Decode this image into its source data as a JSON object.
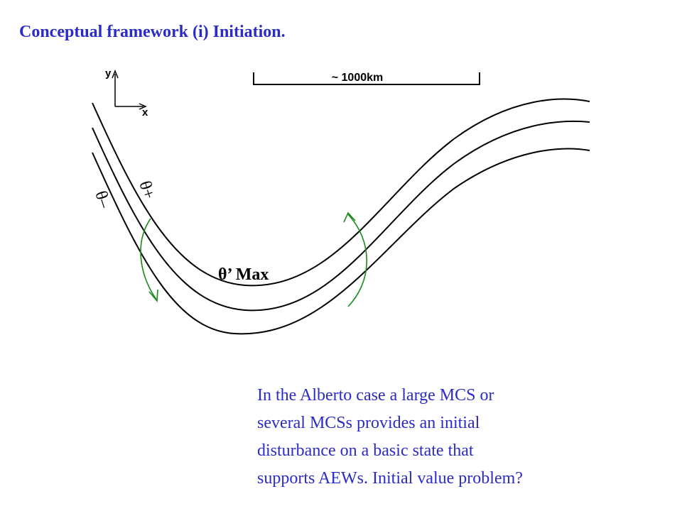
{
  "title": "Conceptual framework (i) Initiation.",
  "diagram": {
    "axis_y": "y",
    "axis_x": "x",
    "scale": "~ 1000km",
    "theta_plus": "θ+",
    "theta_minus": "θ–",
    "theta_max": "θ’ Max"
  },
  "text": {
    "lines": [
      "In the Alberto case a large MCS or",
      "several MCSs provides an initial",
      "disturbance on a basic state that",
      "supports AEWs. Initial value problem?"
    ]
  }
}
